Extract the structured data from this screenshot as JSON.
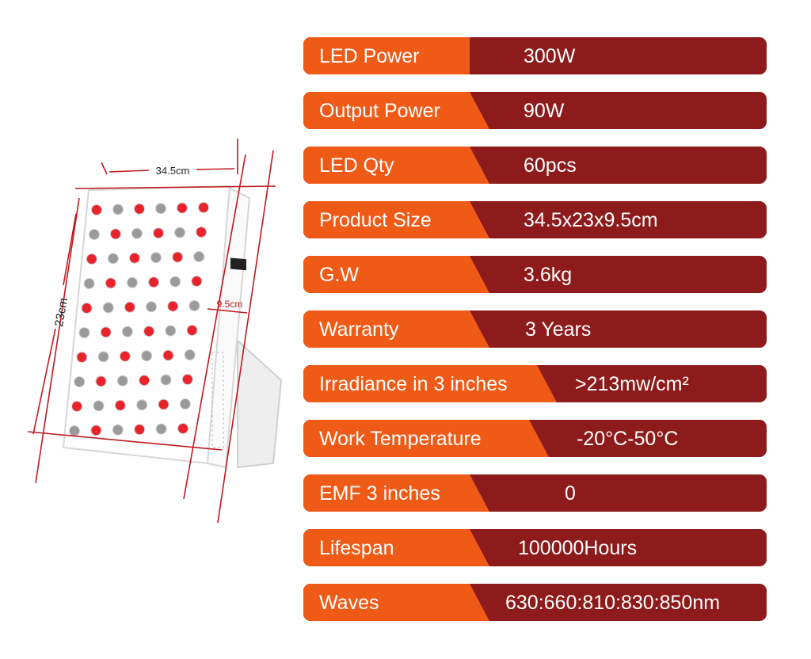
{
  "product": {
    "dim_width": "34.5cm",
    "dim_height": "23cm",
    "dim_depth": "9.5cm",
    "led_colors": {
      "red": "#e8232c",
      "nir": "#9a9a9a"
    }
  },
  "specs": [
    {
      "label": "LED Power",
      "value": "300W"
    },
    {
      "label": "Output Power",
      "value": "90W"
    },
    {
      "label": "LED Qty",
      "value": "60pcs"
    },
    {
      "label": "Product Size",
      "value": "34.5x23x9.5cm"
    },
    {
      "label": "G.W",
      "value": "3.6kg"
    },
    {
      "label": "Warranty",
      "value": "3 Years"
    },
    {
      "label": "Irradiance in 3 inches",
      "value": ">213mw/cm²"
    },
    {
      "label": "Work Temperature",
      "value": "-20°C-50°C"
    },
    {
      "label": "EMF 3 inches",
      "value": "0"
    },
    {
      "label": "Lifespan",
      "value": "100000Hours"
    },
    {
      "label": "Waves",
      "value": "630:660:810:830:850nm"
    }
  ],
  "colors": {
    "label_bg": "#f05a17",
    "value_bg": "#8e1b1b",
    "dim_line": "#c0191f"
  }
}
